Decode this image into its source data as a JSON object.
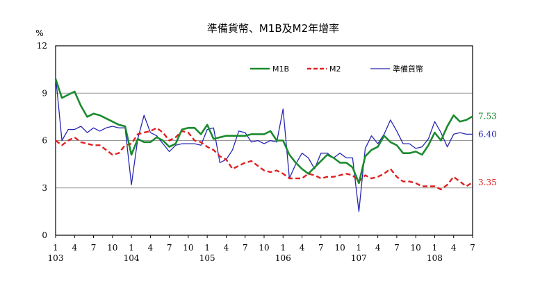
{
  "chart_data": {
    "type": "line",
    "title": "準備貨幣、M1B及M2年增率",
    "unit": "%",
    "ylim": [
      0,
      12
    ],
    "yticks": [
      "0",
      "3",
      "6",
      "9",
      "12"
    ],
    "grid": true,
    "legend_position": "top-right",
    "x_month_ticks": [
      "1",
      "4",
      "7",
      "10",
      "1",
      "4",
      "7",
      "10",
      "1",
      "4",
      "7",
      "10",
      "1",
      "4",
      "7",
      "10",
      "1",
      "4",
      "7",
      "10",
      "1",
      "4",
      "7"
    ],
    "x_year_labels": [
      "103",
      "104",
      "105",
      "106",
      "107",
      "108"
    ],
    "x": [
      "103/01",
      "103/02",
      "103/03",
      "103/04",
      "103/05",
      "103/06",
      "103/07",
      "103/08",
      "103/09",
      "103/10",
      "103/11",
      "103/12",
      "104/01",
      "104/02",
      "104/03",
      "104/04",
      "104/05",
      "104/06",
      "104/07",
      "104/08",
      "104/09",
      "104/10",
      "104/11",
      "104/12",
      "105/01",
      "105/02",
      "105/03",
      "105/04",
      "105/05",
      "105/06",
      "105/07",
      "105/08",
      "105/09",
      "105/10",
      "105/11",
      "105/12",
      "106/01",
      "106/02",
      "106/03",
      "106/04",
      "106/05",
      "106/06",
      "106/07",
      "106/08",
      "106/09",
      "106/10",
      "106/11",
      "106/12",
      "107/01",
      "107/02",
      "107/03",
      "107/04",
      "107/05",
      "107/06",
      "107/07",
      "107/08",
      "107/09",
      "107/10",
      "107/11",
      "107/12",
      "108/01",
      "108/02",
      "108/03",
      "108/04",
      "108/05",
      "108/06",
      "108/07"
    ],
    "series": [
      {
        "name": "M1B",
        "color": "#1a8a2e",
        "end_label": "7.53",
        "values": [
          9.9,
          8.7,
          8.9,
          9.1,
          8.2,
          7.5,
          7.7,
          7.6,
          7.4,
          7.2,
          7.0,
          6.9,
          5.1,
          6.1,
          5.9,
          5.9,
          6.2,
          6.0,
          5.6,
          5.8,
          6.7,
          6.8,
          6.8,
          6.4,
          7.0,
          6.1,
          6.2,
          6.3,
          6.3,
          6.3,
          6.3,
          6.4,
          6.4,
          6.4,
          6.6,
          6.0,
          6.0,
          5.1,
          4.6,
          4.2,
          3.9,
          4.3,
          4.7,
          5.1,
          4.9,
          4.6,
          4.6,
          4.3,
          3.3,
          5.0,
          5.4,
          5.6,
          6.3,
          5.9,
          5.7,
          5.2,
          5.2,
          5.3,
          5.1,
          5.7,
          6.5,
          6.0,
          6.9,
          7.6,
          7.2,
          7.3,
          7.53
        ]
      },
      {
        "name": "M2",
        "color": "#e02020",
        "end_label": "3.35",
        "values": [
          6.0,
          5.7,
          6.0,
          6.2,
          5.9,
          5.8,
          5.7,
          5.7,
          5.4,
          5.1,
          5.2,
          5.7,
          5.8,
          6.4,
          6.5,
          6.6,
          6.8,
          6.5,
          6.0,
          6.2,
          6.6,
          6.5,
          6.0,
          5.9,
          5.6,
          5.4,
          5.0,
          4.8,
          4.2,
          4.4,
          4.6,
          4.7,
          4.4,
          4.1,
          4.0,
          4.1,
          3.9,
          3.6,
          3.6,
          3.6,
          3.9,
          3.8,
          3.6,
          3.7,
          3.7,
          3.8,
          3.9,
          3.8,
          3.4,
          3.8,
          3.6,
          3.7,
          3.9,
          4.2,
          3.7,
          3.4,
          3.4,
          3.3,
          3.1,
          3.1,
          3.1,
          2.9,
          3.2,
          3.7,
          3.4,
          3.1,
          3.35
        ]
      },
      {
        "name": "準備貨幣",
        "color": "#2626b3",
        "end_label": "6.40",
        "values": [
          10.1,
          6.0,
          6.7,
          6.7,
          6.9,
          6.5,
          6.8,
          6.6,
          6.8,
          6.9,
          6.8,
          6.8,
          3.2,
          6.1,
          7.6,
          6.5,
          6.3,
          5.8,
          5.3,
          5.7,
          5.8,
          5.8,
          5.8,
          5.7,
          6.7,
          6.8,
          4.6,
          4.8,
          5.4,
          6.6,
          6.5,
          5.9,
          6.0,
          5.8,
          6.0,
          5.9,
          8.0,
          3.6,
          4.5,
          5.2,
          4.9,
          4.2,
          5.2,
          5.2,
          4.9,
          5.2,
          4.9,
          4.9,
          1.5,
          5.5,
          6.3,
          5.8,
          6.4,
          7.3,
          6.6,
          5.8,
          5.8,
          5.5,
          5.6,
          6.1,
          7.2,
          6.5,
          5.6,
          6.4,
          6.5,
          6.4,
          6.4
        ]
      }
    ]
  }
}
